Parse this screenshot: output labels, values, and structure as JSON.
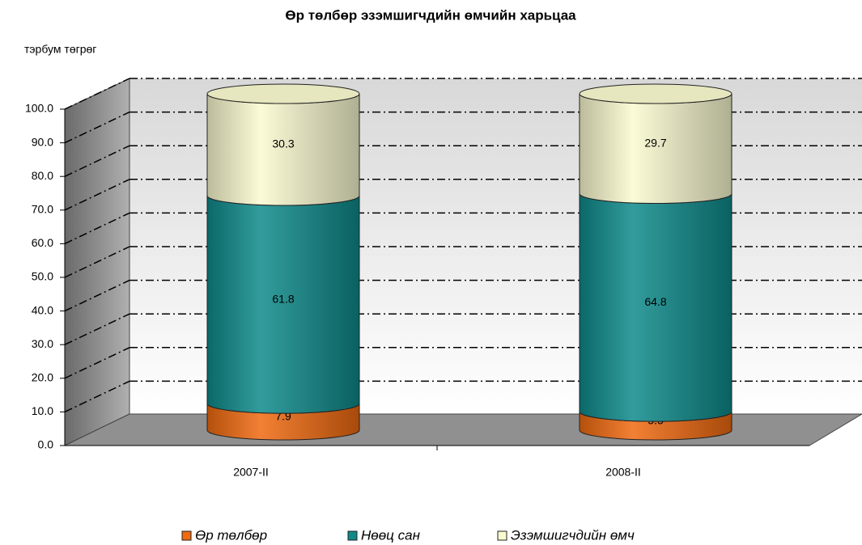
{
  "chart_data": {
    "type": "bar",
    "stacked": true,
    "title": "Өр төлбөр эзэмшигчдийн өмчийн харьцаа",
    "ylabel": "тэрбум төгрөг",
    "categories": [
      "2007-II",
      "2008-II"
    ],
    "series": [
      {
        "name": "Өр төлбөр",
        "color": "#f06a10",
        "values": [
          7.9,
          5.5
        ]
      },
      {
        "name": "Нөөц сан",
        "color": "#0e8a8a",
        "values": [
          61.8,
          64.8
        ]
      },
      {
        "name": "Эзэмшигчдийн өмч",
        "color": "#fafad0",
        "values": [
          30.3,
          29.7
        ]
      }
    ],
    "ylim": [
      0,
      100
    ],
    "yticks": [
      {
        "value": 0,
        "label": "0.0"
      },
      {
        "value": 10,
        "label": "10.0"
      },
      {
        "value": 20,
        "label": "20.0"
      },
      {
        "value": 30,
        "label": "30.0"
      },
      {
        "value": 40,
        "label": "40.0"
      },
      {
        "value": 50,
        "label": "50.0"
      },
      {
        "value": 60,
        "label": "60.0"
      },
      {
        "value": 70,
        "label": "70.0"
      },
      {
        "value": 80,
        "label": "80.0"
      },
      {
        "value": 90,
        "label": "90.0"
      },
      {
        "value": 100,
        "label": "100.0"
      }
    ],
    "grid": true
  }
}
